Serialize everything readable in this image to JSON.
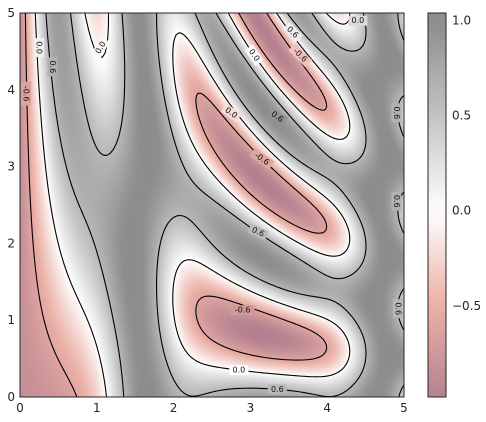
{
  "chart_data": {
    "type": "heatmap",
    "title": "",
    "xlabel": "",
    "ylabel": "",
    "function": "sin(x)^10 + cos(10 + y*x) * cos(x)",
    "xlim": [
      0,
      5
    ],
    "ylim": [
      0,
      5
    ],
    "x_ticks": [
      "0",
      "1",
      "2",
      "3",
      "4",
      "5"
    ],
    "y_ticks": [
      "0",
      "1",
      "2",
      "3",
      "4",
      "5"
    ],
    "colormap": "RdGy",
    "colormap_alpha": 0.5,
    "colormap_stops": [
      {
        "v": -1.0,
        "color": "#67001f"
      },
      {
        "v": -0.5,
        "color": "#d6604d"
      },
      {
        "v": 0.0,
        "color": "#ffffff"
      },
      {
        "v": 0.5,
        "color": "#878787"
      },
      {
        "v": 1.0,
        "color": "#1a1a1a"
      }
    ],
    "contour_levels": [
      -0.6,
      0.0,
      0.6
    ],
    "contour_label_text": {
      "-0.6": "-0.6",
      "0": "0.0",
      "0.6": "0.6"
    },
    "colorbar": {
      "range": [
        -0.98,
        1.04
      ],
      "ticks": [
        1.0,
        0.5,
        0.0,
        -0.5
      ],
      "tick_labels": [
        "1.0",
        "0.5",
        "0.0",
        "−0.5"
      ]
    },
    "grid": false,
    "legend": "none"
  }
}
